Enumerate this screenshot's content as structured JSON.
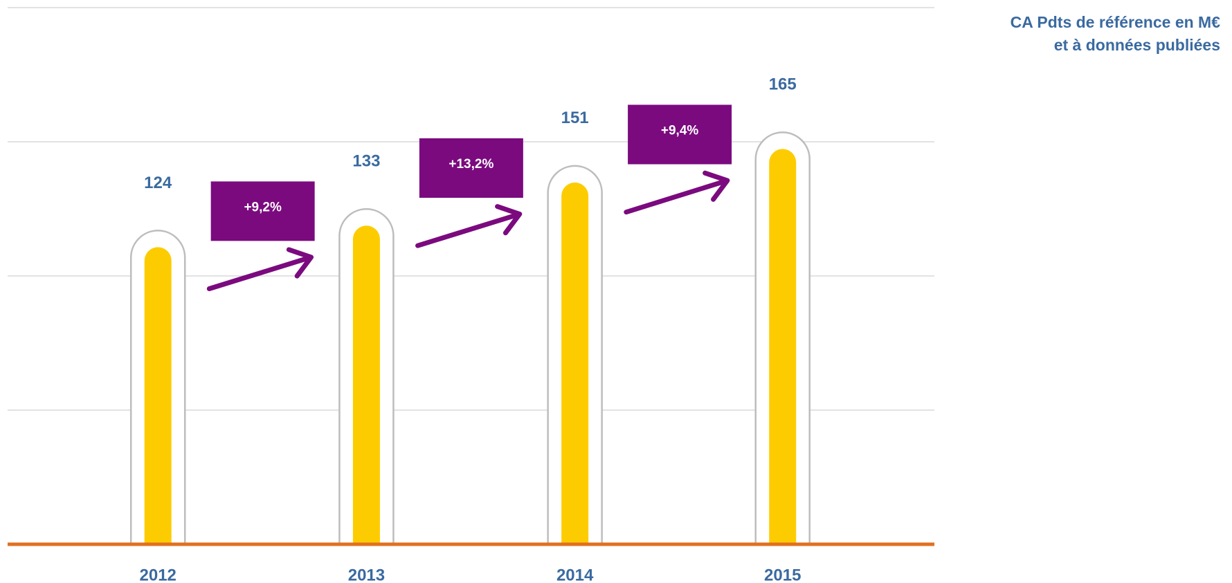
{
  "chart_data": {
    "type": "bar",
    "title": "CA Pdts de référence en M€",
    "subtitle": "et à données publiées",
    "categories": [
      "2012",
      "2013",
      "2014",
      "2015"
    ],
    "values": [
      124,
      133,
      151,
      165
    ],
    "annotations": [
      "+9,2%",
      "+13,2%",
      "+9,4%"
    ],
    "color": "#fdcc00",
    "ylim": [
      0,
      224
    ],
    "yticks": [
      0,
      56,
      112,
      168,
      224
    ],
    "grid": true
  }
}
